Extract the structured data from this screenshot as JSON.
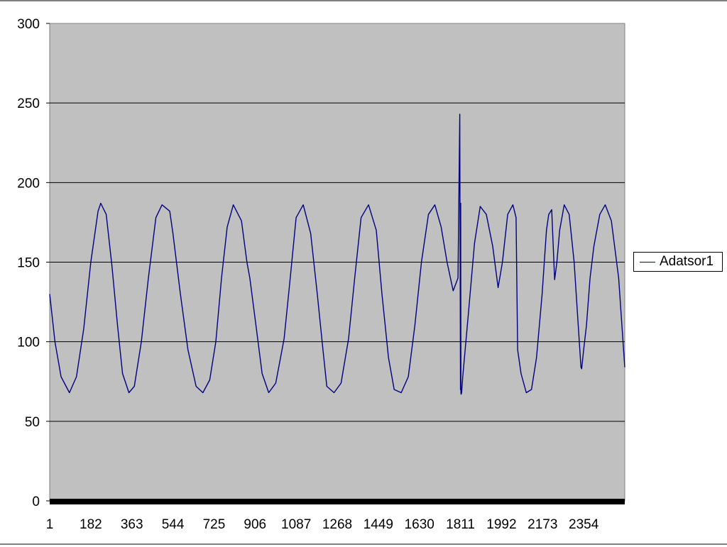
{
  "chart_data": {
    "type": "line",
    "title": "",
    "xlabel": "",
    "ylabel": "",
    "ylim": [
      0,
      300
    ],
    "yticks": [
      0,
      50,
      100,
      150,
      200,
      250,
      300
    ],
    "xlim": [
      1,
      2535
    ],
    "xticks": [
      1,
      182,
      363,
      544,
      725,
      906,
      1087,
      1268,
      1449,
      1630,
      1811,
      1992,
      2173,
      2354
    ],
    "grid": true,
    "legend": "right",
    "colors": {
      "plot_area": "#c0c0c0",
      "series": "#000080",
      "gridline": "#000000"
    },
    "series": [
      {
        "name": "Adatsor1",
        "x": [
          1,
          24,
          51,
          88,
          119,
          151,
          182,
          214,
          226,
          250,
          275,
          300,
          322,
          350,
          374,
          405,
          436,
          469,
          496,
          530,
          544,
          577,
          610,
          646,
          676,
          706,
          733,
          758,
          783,
          810,
          846,
          870,
          883,
          910,
          937,
          966,
          997,
          1034,
          1061,
          1087,
          1118,
          1151,
          1180,
          1205,
          1222,
          1254,
          1285,
          1318,
          1345,
          1373,
          1406,
          1440,
          1465,
          1494,
          1519,
          1550,
          1581,
          1610,
          1639,
          1670,
          1698,
          1726,
          1752,
          1779,
          1800,
          1808,
          1811,
          1812,
          1813,
          1814,
          1816,
          1821,
          1846,
          1873,
          1898,
          1925,
          1953,
          1977,
          1996,
          2019,
          2042,
          2056,
          2063,
          2078,
          2101,
          2124,
          2146,
          2171,
          2190,
          2200,
          2213,
          2226,
          2236,
          2248,
          2268,
          2290,
          2312,
          2330,
          2342,
          2345,
          2354,
          2366,
          2382,
          2399,
          2425,
          2449,
          2476,
          2508,
          2535
        ],
        "y": [
          130,
          100,
          78,
          68,
          78,
          108,
          150,
          182,
          187,
          180,
          148,
          110,
          80,
          68,
          72,
          100,
          140,
          178,
          186,
          182,
          168,
          130,
          95,
          72,
          68,
          76,
          100,
          140,
          172,
          186,
          176,
          150,
          140,
          110,
          80,
          68,
          74,
          102,
          140,
          178,
          186,
          168,
          130,
          95,
          72,
          68,
          74,
          102,
          140,
          178,
          186,
          170,
          130,
          90,
          70,
          68,
          78,
          110,
          150,
          180,
          186,
          172,
          150,
          132,
          140,
          243,
          70,
          187,
          68,
          67,
          68,
          78,
          118,
          162,
          185,
          180,
          160,
          134,
          150,
          180,
          186,
          178,
          95,
          80,
          68,
          70,
          90,
          130,
          170,
          180,
          183,
          139,
          150,
          170,
          186,
          180,
          150,
          110,
          84,
          83,
          95,
          110,
          140,
          160,
          180,
          186,
          176,
          140,
          84
        ]
      }
    ]
  }
}
